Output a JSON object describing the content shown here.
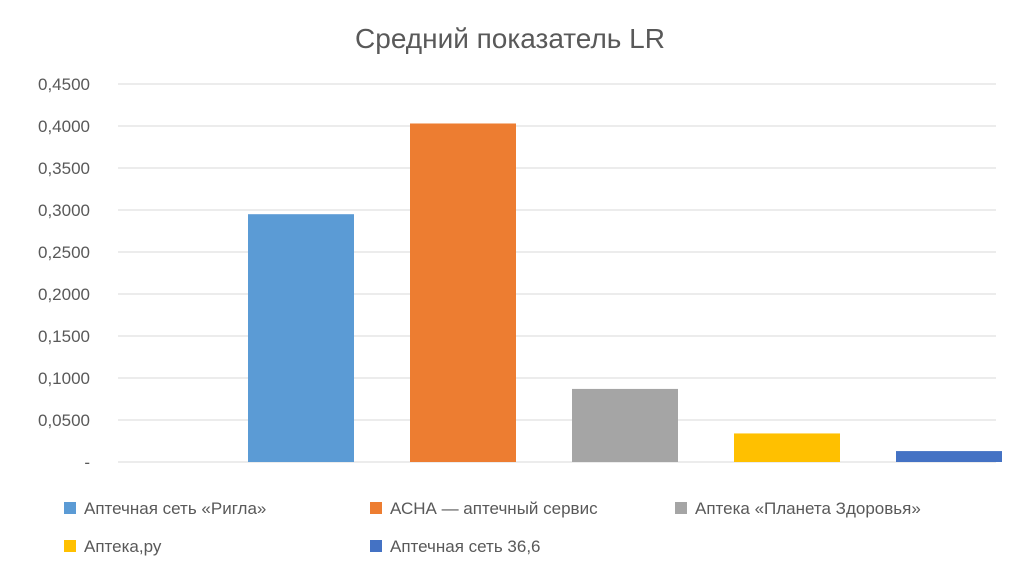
{
  "chart_data": {
    "type": "bar",
    "title": "Средний показатель LR",
    "xlabel": "",
    "ylabel": "",
    "ylim": [
      0,
      0.45
    ],
    "yticks": [
      {
        "value": 0,
        "label": "-"
      },
      {
        "value": 0.05,
        "label": "0,0500"
      },
      {
        "value": 0.1,
        "label": "0,1000"
      },
      {
        "value": 0.15,
        "label": "0,1500"
      },
      {
        "value": 0.2,
        "label": "0,2000"
      },
      {
        "value": 0.25,
        "label": "0,2500"
      },
      {
        "value": 0.3,
        "label": "0,3000"
      },
      {
        "value": 0.35,
        "label": "0,3500"
      },
      {
        "value": 0.4,
        "label": "0,4000"
      },
      {
        "value": 0.45,
        "label": "0,4500"
      }
    ],
    "grid": true,
    "legend_position": "bottom",
    "series": [
      {
        "name": "Аптечная сеть «Ригла»",
        "values": [
          0.295
        ],
        "color": "#5b9bd5"
      },
      {
        "name": "АСНА — аптечный сервис",
        "values": [
          0.403
        ],
        "color": "#ed7d31"
      },
      {
        "name": "Аптека «Планета Здоровья»",
        "values": [
          0.087
        ],
        "color": "#a5a5a5"
      },
      {
        "name": "Аптека,ру",
        "values": [
          0.034
        ],
        "color": "#ffc000"
      },
      {
        "name": "Аптечная сеть 36,6",
        "values": [
          0.013
        ],
        "color": "#4472c4"
      }
    ]
  }
}
